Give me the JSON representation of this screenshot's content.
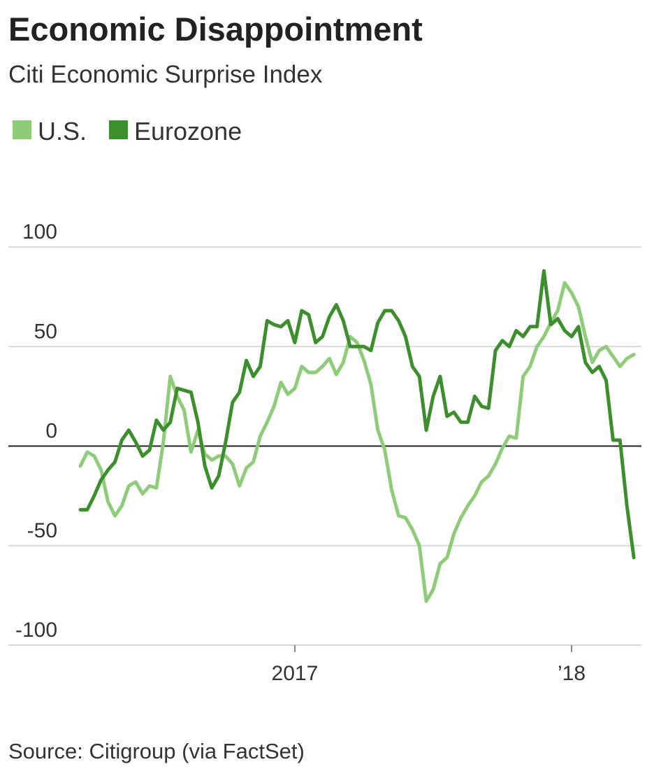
{
  "chart_data": {
    "type": "line",
    "title": "Economic Disappointment",
    "subtitle": "Citi Economic Surprise Index",
    "source": "Source: Citigroup (via FactSet)",
    "x": [
      2016.225,
      2016.25,
      2016.275,
      2016.3,
      2016.325,
      2016.35,
      2016.375,
      2016.4,
      2016.425,
      2016.45,
      2016.475,
      2016.5,
      2016.525,
      2016.55,
      2016.575,
      2016.6,
      2016.625,
      2016.65,
      2016.675,
      2016.7,
      2016.725,
      2016.75,
      2016.775,
      2016.8,
      2016.825,
      2016.85,
      2016.875,
      2016.9,
      2016.925,
      2016.95,
      2016.975,
      2017.0,
      2017.025,
      2017.05,
      2017.075,
      2017.1,
      2017.125,
      2017.15,
      2017.175,
      2017.2,
      2017.225,
      2017.25,
      2017.275,
      2017.3,
      2017.325,
      2017.35,
      2017.375,
      2017.4,
      2017.425,
      2017.45,
      2017.475,
      2017.5,
      2017.525,
      2017.55,
      2017.575,
      2017.6,
      2017.625,
      2017.65,
      2017.675,
      2017.7,
      2017.725,
      2017.75,
      2017.775,
      2017.8,
      2017.825,
      2017.85,
      2017.875,
      2017.9,
      2017.925,
      2017.95,
      2017.975,
      2018.0,
      2018.025,
      2018.05,
      2018.075,
      2018.1,
      2018.125,
      2018.15,
      2018.175,
      2018.2,
      2018.225
    ],
    "series": [
      {
        "name": "U.S.",
        "color": "#8fcc7a",
        "values": [
          -10,
          -3,
          -5,
          -12,
          -28,
          -35,
          -30,
          -20,
          -18,
          -24,
          -20,
          -21,
          2,
          35,
          25,
          18,
          -3,
          8,
          -4,
          -7,
          -5,
          -5,
          -9,
          -20,
          -11,
          -8,
          5,
          12,
          20,
          32,
          26,
          29,
          40,
          37,
          37,
          40,
          44,
          36,
          42,
          55,
          52,
          43,
          31,
          8,
          -2,
          -22,
          -35,
          -36,
          -42,
          -50,
          -78,
          -72,
          -59,
          -56,
          -44,
          -36,
          -30,
          -25,
          -18,
          -15,
          -9,
          -1,
          5,
          4,
          35,
          40,
          50,
          55,
          62,
          68,
          82,
          77,
          70,
          55,
          42,
          48,
          50,
          45,
          40,
          44,
          46
        ]
      },
      {
        "name": "Eurozone",
        "color": "#3d8f2e",
        "values": [
          -32,
          -32,
          -25,
          -17,
          -12,
          -8,
          3,
          8,
          2,
          -5,
          -2,
          13,
          8,
          12,
          29,
          28,
          27,
          12,
          -10,
          -21,
          -15,
          2,
          22,
          27,
          43,
          35,
          40,
          63,
          61,
          60,
          63,
          52,
          68,
          66,
          52,
          55,
          65,
          71,
          63,
          50,
          50,
          50,
          48,
          62,
          68,
          68,
          63,
          55,
          40,
          35,
          8,
          25,
          35,
          15,
          17,
          12,
          12,
          25,
          20,
          19,
          48,
          53,
          50,
          58,
          55,
          60,
          60,
          88,
          61,
          64,
          58,
          55,
          60,
          42,
          37,
          40,
          33,
          3,
          3,
          -30,
          -56
        ]
      }
    ],
    "xlim": [
      2015.965,
      2018.2525
    ],
    "xticks": [
      2017,
      {
        "value": 2018,
        "label": "’18"
      }
    ],
    "ylim": [
      -100,
      100
    ],
    "yticks": [
      -100,
      -50,
      0,
      50,
      100
    ],
    "grid": true
  }
}
